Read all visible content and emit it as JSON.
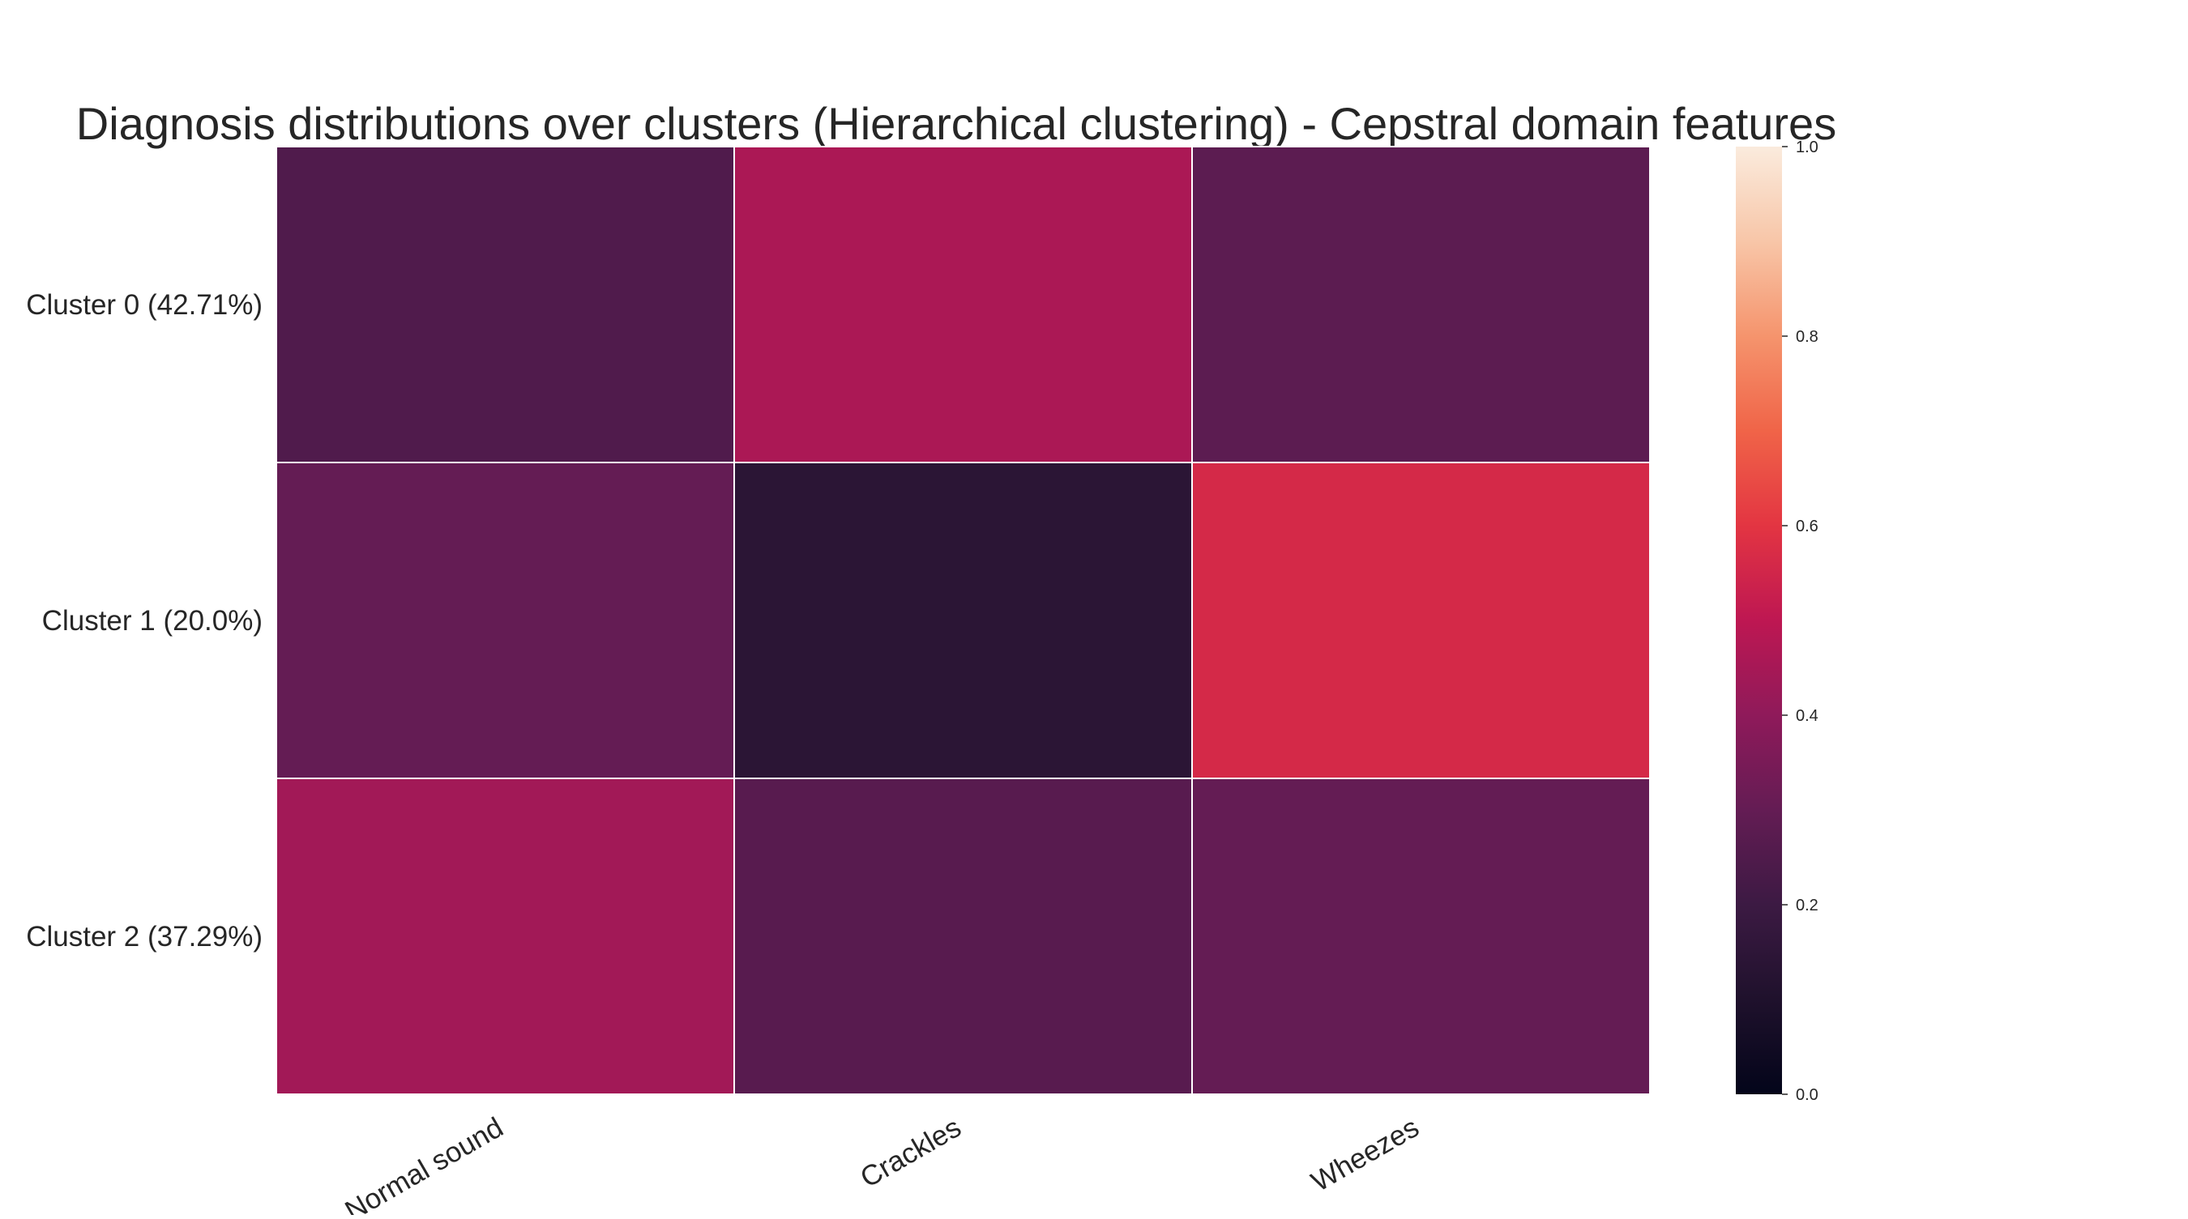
{
  "chart_data": {
    "type": "heatmap",
    "title": "Diagnosis distributions over clusters (Hierarchical clustering) - Cepstral domain features",
    "xlabel": "",
    "ylabel": "",
    "columns": [
      "Normal sound",
      "Crackles",
      "Wheezes"
    ],
    "rows": [
      "Cluster 0 (42.71%)",
      "Cluster 1 (20.0%)",
      "Cluster 2 (37.29%)"
    ],
    "values": [
      [
        0.25,
        0.46,
        0.28
      ],
      [
        0.3,
        0.14,
        0.56
      ],
      [
        0.44,
        0.27,
        0.3
      ]
    ],
    "colorbar": {
      "min": 0.0,
      "max": 1.0,
      "ticks": [
        "0.0",
        "0.2",
        "0.4",
        "0.6",
        "0.8",
        "1.0"
      ],
      "colormap": "rocket"
    },
    "annotations": false,
    "grid": false
  }
}
